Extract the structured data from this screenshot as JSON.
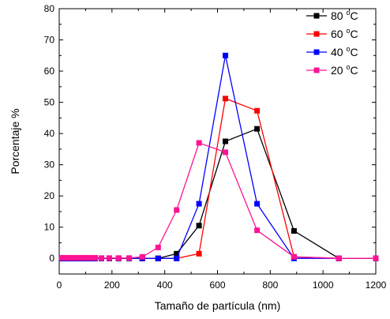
{
  "chart_data": {
    "type": "line",
    "xlabel": "Tamaño de partícula (nm)",
    "ylabel": "Porcentaje %",
    "xlim": [
      0,
      1200
    ],
    "ylim": [
      -5,
      80
    ],
    "xticks": [
      0,
      200,
      400,
      600,
      800,
      1000,
      1200
    ],
    "yticks": [
      0,
      10,
      20,
      30,
      40,
      50,
      60,
      70,
      80
    ],
    "grid": false,
    "legend_position": "top-right",
    "series": [
      {
        "name": "80 °C",
        "label_main": "80 ",
        "label_sup": "o",
        "label_unit": "C",
        "color": "#000000",
        "marker": "square",
        "x": [
          10,
          23,
          35,
          48,
          60,
          73,
          86,
          98,
          111,
          124,
          136,
          160,
          190,
          225,
          265,
          315,
          375,
          445,
          530,
          630,
          750,
          890,
          1060,
          1200
        ],
        "y": [
          0,
          0,
          0,
          0,
          0,
          0,
          0,
          0,
          0,
          0,
          0,
          0,
          0,
          0,
          0,
          0,
          0,
          1.5,
          10.5,
          37.5,
          41.5,
          8.8,
          0,
          0
        ]
      },
      {
        "name": "60 °C",
        "label_main": "60 ",
        "label_sup": "o",
        "label_unit": "C",
        "color": "#ff0000",
        "marker": "square",
        "x": [
          10,
          23,
          35,
          48,
          60,
          73,
          86,
          98,
          111,
          124,
          136,
          160,
          190,
          225,
          265,
          315,
          375,
          445,
          530,
          630,
          750,
          890,
          1060,
          1200
        ],
        "y": [
          0,
          0,
          0,
          0,
          0,
          0,
          0,
          0,
          0,
          0,
          0,
          0,
          0,
          0,
          0,
          0,
          0,
          0,
          1.5,
          51.2,
          47.3,
          0.5,
          0,
          0
        ]
      },
      {
        "name": "40 °C",
        "label_main": "40 ",
        "label_sup": "o",
        "label_unit": "C",
        "color": "#0000ff",
        "marker": "square",
        "x": [
          10,
          23,
          35,
          48,
          60,
          73,
          86,
          98,
          111,
          124,
          136,
          160,
          190,
          225,
          265,
          315,
          375,
          445,
          530,
          630,
          750,
          890,
          1060,
          1200
        ],
        "y": [
          0,
          0,
          0,
          0,
          0,
          0,
          0,
          0,
          0,
          0,
          0,
          0,
          0,
          0,
          0,
          0,
          0,
          0,
          17.5,
          65,
          17.5,
          0,
          0,
          0
        ]
      },
      {
        "name": "20 °C",
        "label_main": "20 ",
        "label_sup": "o",
        "label_unit": "C",
        "color": "#ff1493",
        "marker": "square",
        "x": [
          10,
          23,
          35,
          48,
          60,
          73,
          86,
          98,
          111,
          124,
          136,
          160,
          190,
          225,
          265,
          315,
          375,
          445,
          530,
          630,
          750,
          890,
          1060,
          1200
        ],
        "y": [
          0.2,
          0.2,
          0.2,
          0.2,
          0.2,
          0.2,
          0.2,
          0.2,
          0.2,
          0.2,
          0.2,
          0.1,
          0.1,
          0.1,
          0.1,
          0.5,
          3.5,
          15.5,
          37,
          34,
          9,
          0.5,
          0,
          0
        ]
      }
    ]
  }
}
